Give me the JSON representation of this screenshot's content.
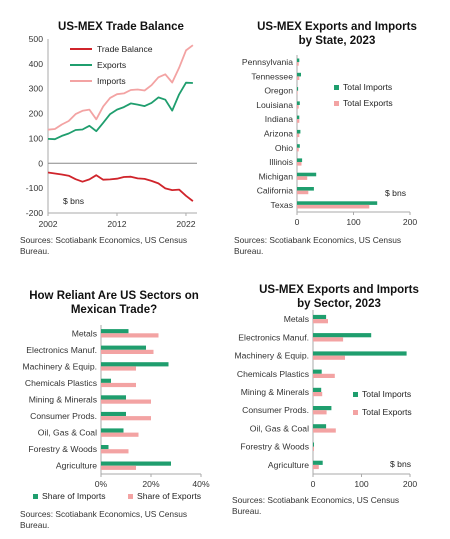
{
  "colors": {
    "balance": "#d0242b",
    "exports": "#1f9e6e",
    "imports": "#f3a3a3",
    "axis": "#aaaaaa",
    "grid": "#e6e6e6"
  },
  "chart_data": [
    {
      "type": "line",
      "title": "US-MEX Trade Balance",
      "unit_note": "$ bns",
      "source": "Sources: Scotiabank Economics, US Census Bureau.",
      "x": [
        2002,
        2003,
        2004,
        2005,
        2006,
        2007,
        2008,
        2009,
        2010,
        2011,
        2012,
        2013,
        2014,
        2015,
        2016,
        2017,
        2018,
        2019,
        2020,
        2021,
        2022,
        2023
      ],
      "xticks": [
        2002,
        2012,
        2022
      ],
      "yticks": [
        -200,
        -100,
        0,
        100,
        200,
        300,
        400,
        500
      ],
      "ylim": [
        -200,
        500
      ],
      "legend": [
        "Trade Balance",
        "Exports",
        "Imports"
      ],
      "series": [
        {
          "name": "Trade Balance",
          "color_key": "balance",
          "values": [
            -37,
            -41,
            -45,
            -50,
            -64,
            -74,
            -65,
            -48,
            -66,
            -65,
            -62,
            -55,
            -54,
            -61,
            -63,
            -71,
            -81,
            -101,
            -108,
            -106,
            -131,
            -152
          ]
        },
        {
          "name": "Exports",
          "color_key": "exports",
          "values": [
            98,
            97,
            110,
            120,
            134,
            136,
            151,
            129,
            163,
            198,
            216,
            226,
            241,
            236,
            230,
            243,
            265,
            256,
            212,
            277,
            324,
            323
          ]
        },
        {
          "name": "Imports",
          "color_key": "imports",
          "values": [
            135,
            138,
            156,
            170,
            198,
            211,
            216,
            177,
            229,
            263,
            278,
            281,
            295,
            297,
            293,
            314,
            346,
            358,
            325,
            384,
            454,
            475
          ]
        }
      ]
    },
    {
      "type": "bar",
      "orientation": "horizontal",
      "title_lines": [
        "US-MEX Exports and Imports",
        "by State, 2023"
      ],
      "unit_note": "$ bns",
      "source": "Sources: Scotiabank Economics, US Census Bureau.",
      "categories": [
        "Pennsylvania",
        "Tennessee",
        "Oregon",
        "Louisiana",
        "Indiana",
        "Arizona",
        "Ohio",
        "Illinois",
        "Michigan",
        "California",
        "Texas"
      ],
      "xticks": [
        0,
        100,
        200
      ],
      "xlim": [
        0,
        200
      ],
      "series": [
        {
          "name": "Total Imports",
          "color_key": "exports",
          "values": [
            4,
            7,
            2,
            5,
            4,
            6,
            5,
            9,
            34,
            30,
            142
          ]
        },
        {
          "name": "Total Exports",
          "color_key": "imports",
          "values": [
            3,
            4,
            1,
            3,
            4,
            4,
            3,
            8,
            18,
            20,
            128
          ]
        }
      ]
    },
    {
      "type": "bar",
      "orientation": "horizontal",
      "title_lines": [
        "How Reliant Are US Sectors on",
        "Mexican Trade?"
      ],
      "source": "Sources: Scotiabank Economics, US Census Bureau.",
      "categories": [
        "Metals",
        "Electronics Manuf.",
        "Machinery & Equip.",
        "Chemicals Plastics",
        "Mining & Minerals",
        "Consumer Prods.",
        "Oil, Gas & Coal",
        "Forestry & Woods",
        "Agriculture"
      ],
      "xticks": [
        "0%",
        "20%",
        "40%"
      ],
      "xlim": [
        0,
        40
      ],
      "series": [
        {
          "name": "Share of Imports",
          "color_key": "exports",
          "values": [
            11,
            18,
            27,
            4,
            10,
            10,
            9,
            3,
            28
          ]
        },
        {
          "name": "Share of Exports",
          "color_key": "imports",
          "values": [
            23,
            21,
            14,
            14,
            20,
            20,
            15,
            11,
            14
          ]
        }
      ]
    },
    {
      "type": "bar",
      "orientation": "horizontal",
      "title_lines": [
        "US-MEX Exports and Imports",
        "by Sector, 2023"
      ],
      "unit_note": "$ bns",
      "source": "Sources: Scotiabank Economics, US Census Bureau.",
      "categories": [
        "Metals",
        "Electronics Manuf.",
        "Machinery & Equip.",
        "Chemicals Plastics",
        "Mining & Minerals",
        "Consumer Prods.",
        "Oil, Gas & Coal",
        "Forestry & Woods",
        "Agriculture"
      ],
      "xticks": [
        0,
        100,
        200
      ],
      "xlim": [
        0,
        200
      ],
      "series": [
        {
          "name": "Total Imports",
          "color_key": "exports",
          "values": [
            27,
            120,
            193,
            18,
            17,
            38,
            27,
            2,
            20
          ]
        },
        {
          "name": "Total Exports",
          "color_key": "imports",
          "values": [
            31,
            62,
            66,
            45,
            19,
            28,
            47,
            2,
            12
          ]
        }
      ]
    }
  ]
}
